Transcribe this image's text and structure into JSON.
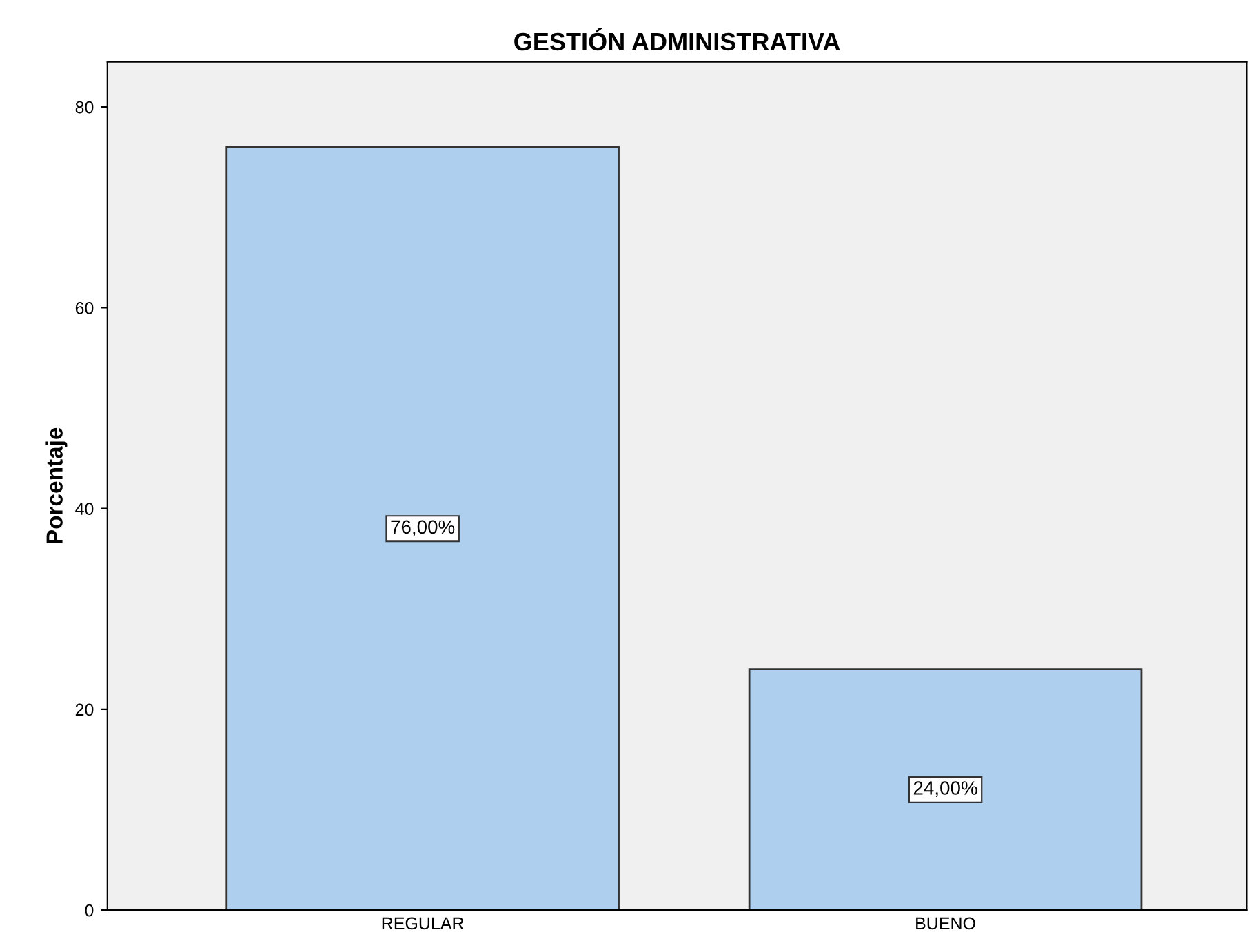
{
  "chart_data": {
    "type": "bar",
    "title": "GESTIÓN ADMINISTRATIVA",
    "ylabel": "Porcentaje",
    "categories": [
      "REGULAR",
      "BUENO"
    ],
    "values": [
      76,
      24
    ],
    "value_labels": [
      "76,00%",
      "24,00%"
    ],
    "color": "#aecfee",
    "ylim": [
      0,
      84.5
    ],
    "yticks": [
      0,
      20,
      40,
      60,
      80
    ],
    "grid": false,
    "legend": false
  }
}
